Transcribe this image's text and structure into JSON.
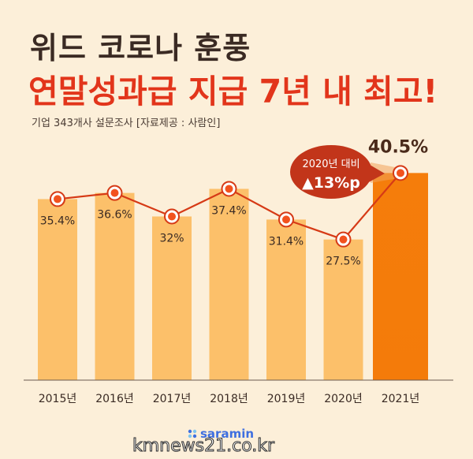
{
  "header": {
    "title_line1": "위드 코로나 훈풍",
    "title_line2": "연말성과급 지급 7년 내 최고!",
    "subtitle": "기업 343개사 설문조사 [자료제공 : 사람인]"
  },
  "callout": {
    "line1": "2020년 대비",
    "line2": "▲13%p"
  },
  "brand": {
    "logo_text": "saramin",
    "watermark": "kmnews21.co.kr"
  },
  "colors": {
    "bar": "#fcc06a",
    "bar_highlight": "#f27a0a",
    "line": "#d63a16",
    "marker_fill": "#f2521e",
    "background": "#fcefd9",
    "title_accent": "#e2351b"
  },
  "chart_data": {
    "type": "bar",
    "categories": [
      "2015년",
      "2016년",
      "2017년",
      "2018년",
      "2019년",
      "2020년",
      "2021년"
    ],
    "values": [
      35.4,
      36.6,
      32,
      37.4,
      31.4,
      27.5,
      40.5
    ],
    "value_labels": [
      "35.4%",
      "36.6%",
      "32%",
      "37.4%",
      "31.4%",
      "27.5%",
      "40.5%"
    ],
    "unit": "%",
    "overlay": "line",
    "highlight_index": 6,
    "ylim": [
      0,
      42
    ],
    "grid": false,
    "title": "",
    "xlabel": "",
    "ylabel": ""
  }
}
